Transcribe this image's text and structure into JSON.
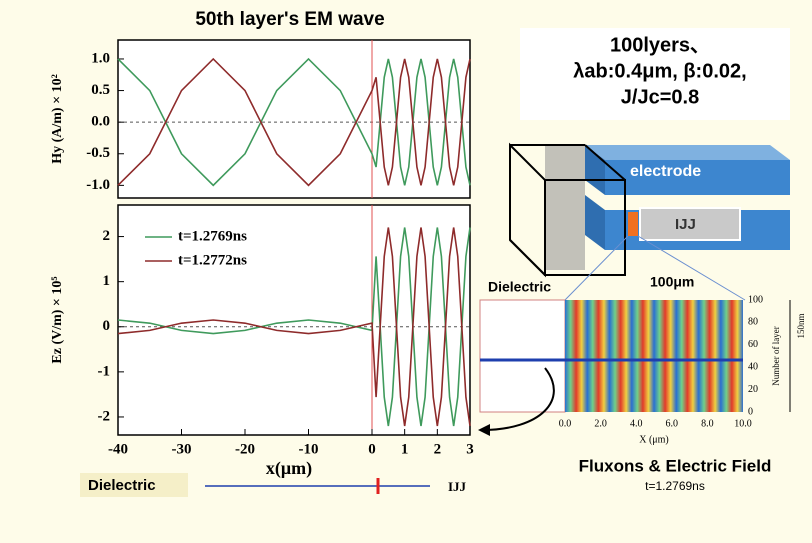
{
  "chart_data": [
    {
      "type": "line",
      "title": "50th layer's EM wave",
      "ylabel": "Hy (A/m) × 10²",
      "x": [
        -40,
        -35,
        -30,
        -25,
        -20,
        -15,
        -10,
        -5,
        0,
        0.125,
        0.25,
        0.375,
        0.5,
        0.625,
        0.75,
        0.875,
        1,
        1.125,
        1.25,
        1.375,
        1.5,
        1.625,
        1.75,
        1.875,
        2,
        2.125,
        2.25,
        2.375,
        2.5,
        2.625,
        2.75,
        2.875,
        3
      ],
      "xlim": [
        -40,
        3
      ],
      "x_break": 0,
      "ylim": [
        -1.2,
        1.3
      ],
      "yticks": [
        {
          "value": 1,
          "label": "1.0"
        },
        {
          "value": 0.5,
          "label": "0.5"
        },
        {
          "value": 0,
          "label": "0.0"
        },
        {
          "value": -0.5,
          "label": "-0.5"
        },
        {
          "value": -1,
          "label": "-1.0"
        }
      ],
      "legend": false,
      "series": [
        {
          "name": "t=1.2769ns",
          "color": "#3f9a5c",
          "values": [
            1,
            0.5,
            -0.5,
            -1,
            -0.5,
            0.5,
            1,
            0.5,
            -0.5,
            -0.71,
            0,
            0.71,
            1,
            0.71,
            0,
            -0.71,
            -1,
            -0.71,
            0,
            0.71,
            1,
            0.71,
            0,
            -0.71,
            -1,
            -0.71,
            0,
            0.71,
            1,
            0.71,
            0,
            -0.71,
            -1
          ]
        },
        {
          "name": "t=1.2772ns",
          "color": "#8e2b2b",
          "values": [
            -1,
            -0.5,
            0.5,
            1,
            0.5,
            -0.5,
            -1,
            -0.5,
            0.5,
            0.71,
            0,
            -0.71,
            -1,
            -0.71,
            0,
            0.71,
            1,
            0.71,
            0,
            -0.71,
            -1,
            -0.71,
            0,
            0.71,
            1,
            0.71,
            0,
            -0.71,
            -1,
            -0.71,
            0,
            0.71,
            1
          ]
        }
      ]
    },
    {
      "type": "line",
      "ylabel": "Ez (V/m) × 10⁵",
      "xlabel": "x(μm)",
      "x": [
        -40,
        -35,
        -30,
        -25,
        -20,
        -15,
        -10,
        -5,
        0,
        0.125,
        0.25,
        0.375,
        0.5,
        0.625,
        0.75,
        0.875,
        1,
        1.125,
        1.25,
        1.375,
        1.5,
        1.625,
        1.75,
        1.875,
        2,
        2.125,
        2.25,
        2.375,
        2.5,
        2.625,
        2.75,
        2.875,
        3
      ],
      "xlim": [
        -40,
        3
      ],
      "x_break": 0,
      "xticks": [
        -40,
        -30,
        -20,
        -10,
        0,
        1,
        2,
        3
      ],
      "ylim": [
        -2.4,
        2.7
      ],
      "yticks": [
        2,
        1,
        0,
        -1,
        -2
      ],
      "legend": true,
      "series": [
        {
          "name": "t=1.2769ns",
          "color": "#3f9a5c",
          "values": [
            0.15,
            0.08,
            -0.08,
            -0.15,
            -0.08,
            0.08,
            0.15,
            0.08,
            -0.08,
            1.56,
            0,
            -1.56,
            -2.2,
            -1.56,
            0,
            1.56,
            2.2,
            1.56,
            0,
            -1.56,
            -2.2,
            -1.56,
            0,
            1.56,
            2.2,
            1.56,
            0,
            -1.56,
            -2.2,
            -1.56,
            0,
            1.56,
            2.2
          ]
        },
        {
          "name": "t=1.2772ns",
          "color": "#8e2b2b",
          "values": [
            -0.15,
            -0.08,
            0.08,
            0.15,
            0.08,
            -0.08,
            -0.15,
            -0.08,
            0.08,
            -1.56,
            0,
            1.56,
            2.2,
            1.56,
            0,
            -1.56,
            -2.2,
            -1.56,
            0,
            1.56,
            2.2,
            1.56,
            0,
            -1.56,
            -2.2,
            -1.56,
            0,
            1.56,
            2.2,
            1.56,
            0,
            -1.56,
            -2.2
          ]
        }
      ]
    }
  ],
  "params": {
    "lines": [
      "100lyers、",
      "λab:0.4μm, β:0.02,",
      "J/Jc=0.8"
    ]
  },
  "diagram": {
    "electrode": "electrode",
    "ijj": "IJJ",
    "size": "100μm",
    "dielectric": "Dielectric"
  },
  "heatmap": {
    "xticks": [
      "0.0",
      "2.0",
      "4.0",
      "6.0",
      "8.0",
      "10.0"
    ],
    "xlabel": "X (μm)",
    "yticks": [
      "0",
      "20",
      "40",
      "60",
      "80",
      "100"
    ],
    "ylabel": "Number of layer",
    "thickness": "150nm",
    "caption": "Fluxons & Electric Field",
    "time": "t=1.2769ns"
  },
  "footer": {
    "dielectric": "Dielectric",
    "ijj": "IJJ"
  }
}
